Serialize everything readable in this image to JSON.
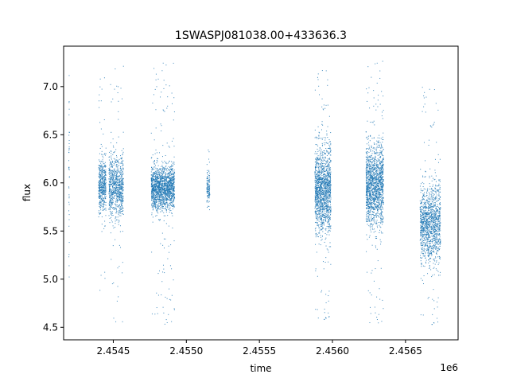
{
  "chart_data": {
    "type": "scatter",
    "title": "1SWASPJ081038.00+433636.3",
    "xlabel": "time",
    "ylabel": "flux",
    "x_offset_label": "1e6",
    "xlim": [
      2454160,
      2456860
    ],
    "ylim": [
      4.37,
      7.42
    ],
    "x_ticks": [
      2454500,
      2455000,
      2455500,
      2456000,
      2456500
    ],
    "x_tick_labels": [
      "2.4545",
      "2.4550",
      "2.4555",
      "2.4560",
      "2.4565"
    ],
    "y_ticks": [
      4.5,
      5.0,
      5.5,
      6.0,
      6.5,
      7.0
    ],
    "y_tick_labels": [
      "4.5",
      "5.0",
      "5.5",
      "6.0",
      "6.5",
      "7.0"
    ],
    "grid": false,
    "legend": "none",
    "marker_color": "#1f77b4",
    "clusters": [
      {
        "t_start": 2454195,
        "t_end": 2454200,
        "center": 6.0,
        "sigma": 0.55,
        "n": 40,
        "ymin": 5.0,
        "ymax": 7.2
      },
      {
        "t_start": 2454400,
        "t_end": 2454450,
        "center": 5.97,
        "sigma": 0.14,
        "n": 500,
        "ymin": 4.8,
        "ymax": 7.15
      },
      {
        "t_start": 2454470,
        "t_end": 2454570,
        "center": 5.95,
        "sigma": 0.16,
        "n": 850,
        "ymin": 4.55,
        "ymax": 7.25
      },
      {
        "t_start": 2454760,
        "t_end": 2454920,
        "center": 5.95,
        "sigma": 0.11,
        "n": 1700,
        "ymin": 4.5,
        "ymax": 7.25
      },
      {
        "t_start": 2455140,
        "t_end": 2455160,
        "center": 5.95,
        "sigma": 0.08,
        "n": 120,
        "ymin": 5.65,
        "ymax": 6.35
      },
      {
        "t_start": 2455880,
        "t_end": 2455990,
        "center": 5.92,
        "sigma": 0.22,
        "n": 1500,
        "ymin": 4.55,
        "ymax": 7.25
      },
      {
        "t_start": 2456230,
        "t_end": 2456350,
        "center": 5.97,
        "sigma": 0.2,
        "n": 1600,
        "ymin": 4.5,
        "ymax": 7.27
      },
      {
        "t_start": 2456600,
        "t_end": 2456740,
        "center": 5.57,
        "sigma": 0.2,
        "n": 1300,
        "ymin": 4.5,
        "ymax": 7.05
      }
    ]
  }
}
